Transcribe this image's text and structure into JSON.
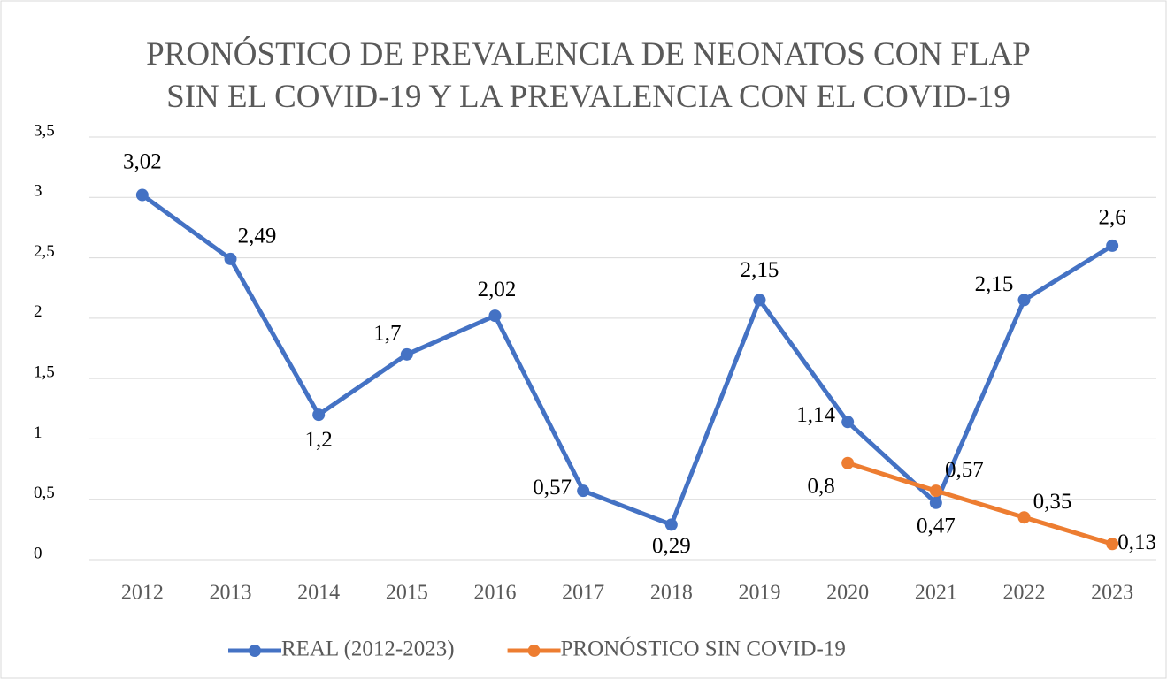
{
  "chart_data": {
    "type": "line",
    "title": "PRONÓSTICO DE PREVALENCIA DE NEONATOS CON FLAP SIN EL COVID-19 Y LA PREVALENCIA CON EL COVID-19",
    "categories": [
      "2012",
      "2013",
      "2014",
      "2015",
      "2016",
      "2017",
      "2018",
      "2019",
      "2020",
      "2021",
      "2022",
      "2023"
    ],
    "series": [
      {
        "name": "REAL (2012-2023)",
        "color": "#4472c4",
        "values": [
          3.02,
          2.49,
          1.2,
          1.7,
          2.02,
          0.57,
          0.29,
          2.15,
          1.14,
          0.47,
          2.15,
          2.6
        ],
        "value_labels": [
          "3,02",
          "2,49",
          "1,2",
          "1,7",
          "2,02",
          "0,57",
          "0,29",
          "2,15",
          "1,14",
          "0,47",
          "2,15",
          "2,6"
        ]
      },
      {
        "name": "PRONÓSTICO SIN COVID-19",
        "color": "#ed7d31",
        "values": [
          null,
          null,
          null,
          null,
          null,
          null,
          null,
          null,
          0.8,
          0.57,
          0.35,
          0.13
        ],
        "value_labels": [
          null,
          null,
          null,
          null,
          null,
          null,
          null,
          null,
          "0,8",
          "0,57",
          "0,35",
          "0,13"
        ]
      }
    ],
    "ylim": [
      0,
      3.5
    ],
    "yticks": [
      0,
      {
        "value": 0.5,
        "label": "0,5"
      },
      1,
      {
        "value": 1.5,
        "label": "1,5"
      },
      2,
      {
        "value": 2.5,
        "label": "2,5"
      },
      3,
      {
        "value": 3.5,
        "label": "3,5"
      }
    ],
    "grid": true,
    "legend": "bottom"
  }
}
